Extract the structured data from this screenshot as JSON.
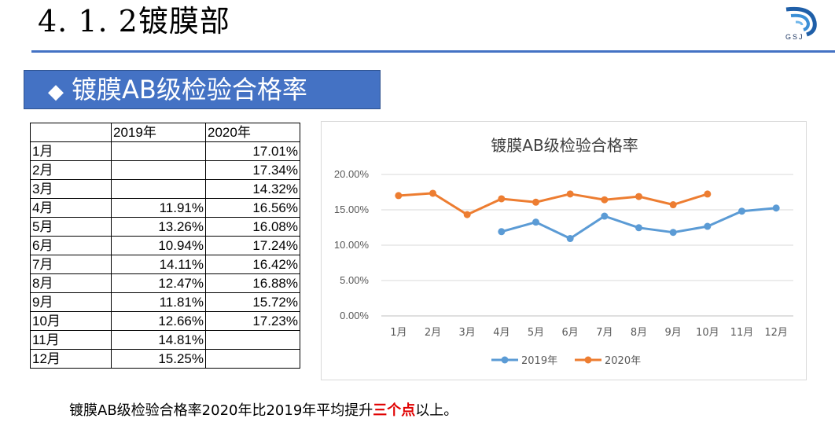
{
  "slide": {
    "title": "4. 1. 2镀膜部",
    "logo_text": "GSJ",
    "section_label": "镀膜AB级检验合格率",
    "section_bullet": "◆"
  },
  "table": {
    "headers": [
      "",
      "2019年",
      "2020年"
    ],
    "rows": [
      [
        "1月",
        "",
        "17.01%"
      ],
      [
        "2月",
        "",
        "17.34%"
      ],
      [
        "3月",
        "",
        "14.32%"
      ],
      [
        "4月",
        "11.91%",
        "16.56%"
      ],
      [
        "5月",
        "13.26%",
        "16.08%"
      ],
      [
        "6月",
        "10.94%",
        "17.24%"
      ],
      [
        "7月",
        "14.11%",
        "16.42%"
      ],
      [
        "8月",
        "12.47%",
        "16.88%"
      ],
      [
        "9月",
        "11.81%",
        "15.72%"
      ],
      [
        "10月",
        "12.66%",
        "17.23%"
      ],
      [
        "11月",
        "14.81%",
        ""
      ],
      [
        "12月",
        "15.25%",
        ""
      ]
    ]
  },
  "chart_data": {
    "type": "line",
    "title": "镀膜AB级检验合格率",
    "categories": [
      "1月",
      "2月",
      "3月",
      "4月",
      "5月",
      "6月",
      "7月",
      "8月",
      "9月",
      "10月",
      "11月",
      "12月"
    ],
    "series": [
      {
        "name": "2019年",
        "color": "#5B9BD5",
        "values": [
          null,
          null,
          null,
          11.91,
          13.26,
          10.94,
          14.11,
          12.47,
          11.81,
          12.66,
          14.81,
          15.25
        ]
      },
      {
        "name": "2020年",
        "color": "#ED7D31",
        "values": [
          17.01,
          17.34,
          14.32,
          16.56,
          16.08,
          17.24,
          16.42,
          16.88,
          15.72,
          17.23,
          null,
          null
        ]
      }
    ],
    "ylim": [
      0,
      20
    ],
    "yticks": [
      {
        "value": 0,
        "label": "0.00%"
      },
      {
        "value": 5,
        "label": "5.00%"
      },
      {
        "value": 10,
        "label": "10.00%"
      },
      {
        "value": 15,
        "label": "15.00%"
      },
      {
        "value": 20,
        "label": "20.00%"
      }
    ],
    "grid": true,
    "legend": "bottom"
  },
  "footnote": {
    "before": "镀膜AB级检验合格率2020年比2019年平均提升",
    "highlight": "三个点",
    "after": "以上。"
  }
}
